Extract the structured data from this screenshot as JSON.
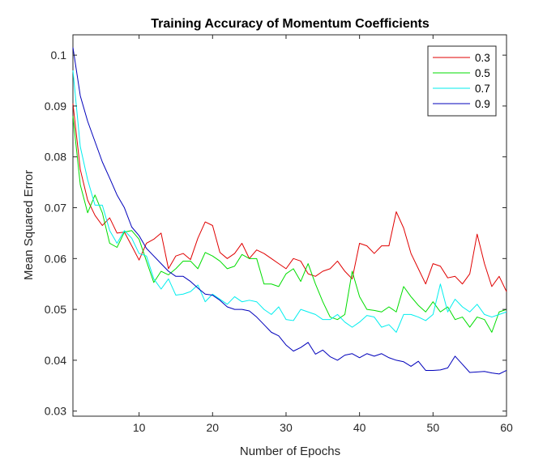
{
  "chart_data": {
    "type": "line",
    "title": "Training Accuracy of Momentum Coefficients",
    "xlabel": "Number of Epochs",
    "ylabel": "Mean Squared Error",
    "xlim": [
      1,
      60
    ],
    "ylim": [
      0.029,
      0.104
    ],
    "xticks": [
      10,
      20,
      30,
      40,
      50,
      60
    ],
    "yticks": [
      0.03,
      0.04,
      0.05,
      0.06,
      0.07,
      0.08,
      0.09,
      0.1
    ],
    "ytick_labels": [
      "0.03",
      "0.04",
      "0.05",
      "0.06",
      "0.07",
      "0.08",
      "0.09",
      "0.1"
    ],
    "grid": false,
    "legend_position": "top-right",
    "x": [
      1,
      2,
      3,
      4,
      5,
      6,
      7,
      8,
      9,
      10,
      11,
      12,
      13,
      14,
      15,
      16,
      17,
      18,
      19,
      20,
      21,
      22,
      23,
      24,
      25,
      26,
      27,
      28,
      29,
      30,
      31,
      32,
      33,
      34,
      35,
      36,
      37,
      38,
      39,
      40,
      41,
      42,
      43,
      44,
      45,
      46,
      47,
      48,
      49,
      50,
      51,
      52,
      53,
      54,
      55,
      56,
      57,
      58,
      59,
      60
    ],
    "series": [
      {
        "name": "0.3",
        "color": "#e00000",
        "values": [
          0.0905,
          0.0775,
          0.0715,
          0.0685,
          0.0665,
          0.068,
          0.065,
          0.0652,
          0.0625,
          0.0597,
          0.063,
          0.0638,
          0.065,
          0.058,
          0.0605,
          0.061,
          0.0598,
          0.064,
          0.0672,
          0.0665,
          0.0612,
          0.06,
          0.061,
          0.063,
          0.06,
          0.0617,
          0.061,
          0.06,
          0.059,
          0.058,
          0.06,
          0.0595,
          0.057,
          0.0565,
          0.0575,
          0.058,
          0.0595,
          0.0575,
          0.056,
          0.063,
          0.0625,
          0.061,
          0.0625,
          0.0625,
          0.0692,
          0.066,
          0.061,
          0.058,
          0.055,
          0.059,
          0.0585,
          0.0562,
          0.0565,
          0.055,
          0.057,
          0.0648,
          0.059,
          0.0545,
          0.0565,
          0.0535
        ]
      },
      {
        "name": "0.5",
        "color": "#00dd00",
        "values": [
          0.088,
          0.0745,
          0.069,
          0.0725,
          0.069,
          0.063,
          0.0622,
          0.0652,
          0.0655,
          0.0638,
          0.0595,
          0.0553,
          0.0575,
          0.0568,
          0.058,
          0.0595,
          0.0595,
          0.058,
          0.0612,
          0.0605,
          0.0595,
          0.058,
          0.0585,
          0.0608,
          0.06,
          0.06,
          0.055,
          0.055,
          0.0545,
          0.057,
          0.058,
          0.0555,
          0.059,
          0.055,
          0.0515,
          0.0485,
          0.048,
          0.049,
          0.0575,
          0.0525,
          0.05,
          0.0498,
          0.0495,
          0.0505,
          0.0495,
          0.0545,
          0.0525,
          0.0508,
          0.0495,
          0.0515,
          0.0495,
          0.0505,
          0.048,
          0.0485,
          0.0465,
          0.0485,
          0.048,
          0.0455,
          0.0495,
          0.05
        ]
      },
      {
        "name": "0.7",
        "color": "#00eeee",
        "values": [
          0.097,
          0.082,
          0.0755,
          0.0705,
          0.0705,
          0.0655,
          0.063,
          0.0655,
          0.064,
          0.061,
          0.0605,
          0.056,
          0.054,
          0.056,
          0.0528,
          0.053,
          0.0535,
          0.0548,
          0.0515,
          0.053,
          0.052,
          0.051,
          0.0525,
          0.0515,
          0.0518,
          0.0515,
          0.05,
          0.049,
          0.0505,
          0.048,
          0.0478,
          0.05,
          0.0495,
          0.049,
          0.048,
          0.048,
          0.049,
          0.0475,
          0.0465,
          0.0475,
          0.0488,
          0.0485,
          0.0465,
          0.047,
          0.0455,
          0.049,
          0.049,
          0.0485,
          0.0478,
          0.049,
          0.055,
          0.0495,
          0.052,
          0.0505,
          0.0495,
          0.051,
          0.049,
          0.0485,
          0.049,
          0.0495
        ]
      },
      {
        "name": "0.9",
        "color": "#0000bb",
        "values": [
          0.1015,
          0.092,
          0.087,
          0.083,
          0.079,
          0.0758,
          0.0725,
          0.07,
          0.0662,
          0.0645,
          0.062,
          0.0605,
          0.059,
          0.0575,
          0.0565,
          0.0565,
          0.0555,
          0.0542,
          0.053,
          0.0528,
          0.0518,
          0.0505,
          0.05,
          0.05,
          0.0497,
          0.0485,
          0.047,
          0.0455,
          0.0448,
          0.043,
          0.0418,
          0.0425,
          0.0435,
          0.0412,
          0.042,
          0.0407,
          0.04,
          0.041,
          0.0413,
          0.0405,
          0.0413,
          0.0408,
          0.0413,
          0.0405,
          0.04,
          0.0397,
          0.0388,
          0.0398,
          0.038,
          0.038,
          0.0381,
          0.0385,
          0.0408,
          0.0392,
          0.0376,
          0.0377,
          0.0378,
          0.0375,
          0.0373,
          0.038
        ]
      }
    ]
  }
}
